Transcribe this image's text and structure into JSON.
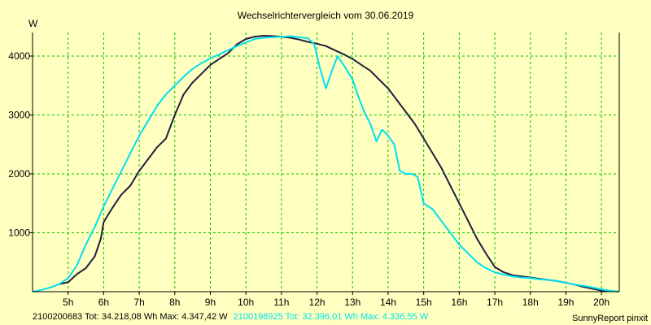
{
  "chart_data": {
    "type": "line",
    "title": "Wechselrichtervergleich vom 30.06.2019",
    "ylabel": "W",
    "xlabel": "",
    "xlim": [
      4.0,
      20.5
    ],
    "ylim": [
      0,
      4400
    ],
    "x_ticks": [
      5,
      6,
      7,
      8,
      9,
      10,
      11,
      12,
      13,
      14,
      15,
      16,
      17,
      18,
      19,
      20
    ],
    "x_tick_labels": [
      "5h",
      "6h",
      "7h",
      "8h",
      "9h",
      "10h",
      "11h",
      "12h",
      "13h",
      "14h",
      "15h",
      "16h",
      "17h",
      "18h",
      "19h",
      "20h"
    ],
    "y_ticks": [
      1000,
      2000,
      3000,
      4000
    ],
    "y_tick_labels": [
      "1000",
      "2000",
      "3000",
      "4000"
    ],
    "grid": true,
    "series": [
      {
        "name": "2100200683",
        "color": "#202040",
        "x": [
          4.75,
          5.0,
          5.25,
          5.5,
          5.75,
          5.92,
          6.0,
          6.17,
          6.33,
          6.5,
          6.75,
          7.0,
          7.25,
          7.5,
          7.75,
          8.0,
          8.25,
          8.5,
          8.75,
          9.0,
          9.25,
          9.5,
          9.75,
          10.0,
          10.25,
          10.5,
          10.75,
          11.0,
          11.25,
          11.5,
          11.75,
          12.0,
          12.25,
          12.5,
          12.75,
          13.0,
          13.25,
          13.5,
          13.75,
          14.0,
          14.25,
          14.5,
          14.75,
          15.0,
          15.25,
          15.5,
          15.75,
          16.0,
          16.25,
          16.5,
          16.75,
          17.0,
          17.25,
          17.5,
          17.75,
          18.0,
          18.25,
          18.5,
          18.75,
          19.0,
          19.25,
          19.5,
          19.75,
          20.0,
          20.25
        ],
        "y": [
          130,
          160,
          300,
          400,
          600,
          900,
          1180,
          1350,
          1500,
          1650,
          1800,
          2050,
          2250,
          2450,
          2600,
          3000,
          3350,
          3550,
          3700,
          3850,
          3950,
          4050,
          4200,
          4290,
          4330,
          4345,
          4340,
          4330,
          4310,
          4280,
          4240,
          4210,
          4170,
          4100,
          4030,
          3950,
          3850,
          3750,
          3600,
          3450,
          3250,
          3050,
          2850,
          2600,
          2350,
          2100,
          1800,
          1500,
          1200,
          900,
          650,
          420,
          330,
          280,
          260,
          240,
          220,
          200,
          180,
          150,
          120,
          80,
          50,
          20,
          10
        ]
      },
      {
        "name": "2100198925",
        "color": "#00e0f0",
        "x": [
          4.0,
          4.25,
          4.5,
          4.75,
          5.0,
          5.25,
          5.5,
          5.75,
          6.0,
          6.25,
          6.5,
          6.75,
          7.0,
          7.25,
          7.5,
          7.75,
          8.0,
          8.25,
          8.5,
          8.75,
          9.0,
          9.25,
          9.5,
          9.75,
          10.0,
          10.25,
          10.5,
          10.75,
          11.0,
          11.25,
          11.5,
          11.75,
          11.92,
          12.08,
          12.25,
          12.42,
          12.58,
          12.75,
          13.0,
          13.17,
          13.33,
          13.5,
          13.67,
          13.83,
          14.0,
          14.17,
          14.33,
          14.5,
          14.67,
          14.83,
          15.0,
          15.25,
          15.5,
          15.75,
          16.0,
          16.25,
          16.5,
          16.75,
          17.0,
          17.25,
          17.5,
          17.75,
          18.0,
          18.25,
          18.5,
          18.75,
          19.0,
          19.25,
          19.5,
          19.75,
          20.0,
          20.25,
          20.5
        ],
        "y": [
          0,
          30,
          70,
          130,
          230,
          450,
          800,
          1100,
          1450,
          1750,
          2050,
          2350,
          2650,
          2900,
          3150,
          3350,
          3500,
          3650,
          3780,
          3880,
          3960,
          4030,
          4100,
          4170,
          4230,
          4290,
          4310,
          4320,
          4330,
          4336,
          4320,
          4300,
          4200,
          3800,
          3450,
          3750,
          4000,
          3850,
          3600,
          3300,
          3050,
          2850,
          2550,
          2750,
          2650,
          2500,
          2050,
          2000,
          2000,
          1950,
          1500,
          1400,
          1200,
          1000,
          800,
          650,
          500,
          400,
          330,
          290,
          260,
          240,
          230,
          210,
          200,
          180,
          150,
          120,
          100,
          70,
          40,
          15,
          0
        ]
      }
    ],
    "legend": {
      "placement": "bottom-left",
      "entries": [
        {
          "text": "2100200683 Tot: 34.218,08 Wh Max: 4.347,42 W",
          "color": "#000000"
        },
        {
          "text": "2100198925 Tot: 32.396,01 Wh Max: 4.336,55 W",
          "color": "#00e0f0"
        }
      ]
    },
    "credit": "SunnyReport pinxit"
  }
}
